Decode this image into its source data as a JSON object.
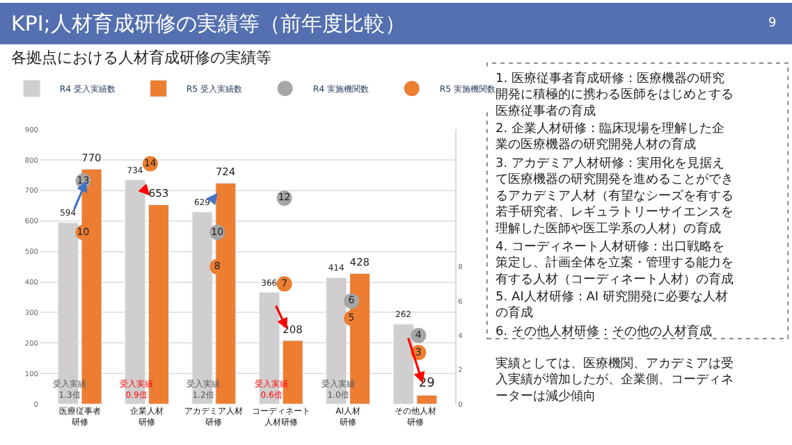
{
  "chart_data": {
    "type": "bar",
    "title": "KPI;人材育成研修の実績等（前年度比較）",
    "subtitle": "各拠点における人材育成研修の実績等",
    "categories": [
      "医療従事者研修",
      "企業人材研修",
      "アカデミア人材研修",
      "コーディネート人材研修",
      "AI人材研修",
      "その他人材研修"
    ],
    "series": [
      {
        "name": "R4 受入実績数",
        "color": "#d0cece",
        "values": [
          594,
          734,
          629,
          366,
          414,
          262
        ]
      },
      {
        "name": "R5 受入実績数",
        "color": "#ed7d31",
        "values": [
          770,
          653,
          724,
          208,
          428,
          29
        ]
      },
      {
        "name": "R4 実施機関数",
        "type": "scatter",
        "axis": "y2",
        "color": "#a6a6a6",
        "values": [
          13,
          null,
          10,
          12,
          6,
          4
        ]
      },
      {
        "name": "R5 実施機関数",
        "type": "scatter",
        "axis": "y2",
        "color": "#ed7d31",
        "values": [
          10,
          14,
          8,
          7,
          5,
          3
        ]
      }
    ],
    "ylim": [
      0,
      900
    ],
    "yticks": [
      0,
      100,
      200,
      300,
      400,
      500,
      600,
      700,
      800,
      900
    ],
    "y2lim": [
      0,
      16
    ],
    "y2ticks": [
      0,
      2,
      4,
      6,
      8
    ],
    "grid": "y",
    "legend": "top",
    "marker": "circle",
    "data_labels": true,
    "annotations": [
      {
        "text": "受入実績\n1.3倍",
        "x": "医療従事者研修"
      },
      {
        "text": "受入実績\n0.9倍",
        "x": "企業人材研修"
      },
      {
        "text": "受入実績\n1.2倍",
        "x": "アカデミア人材研修"
      },
      {
        "text": "受入実績\n0.6倍",
        "x": "コーディネート人材研修"
      },
      {
        "text": "受入実績\n1.0倍",
        "x": "AI人材研修"
      },
      "9",
      "1. 医療従事者育成研修：医療機器の研究開発に積極的に携わる医師をはじめとする医療従事者の育成",
      "2. 企業人材研修：臨床現場を理解した企業の医療機器の研究開発人材の育成",
      "3. アカデミア人材研修：実用化を見据えて医療機器の研究開発を進めることができるアカデミア人材（有望なシーズを有する若手研究者、レギュラトリーサイエンスを理解した医師や医工学系の人材）の育成",
      "4. コーディネート人材研修：出口戦略を策定し、計画全体を立案・管理する能力を有する人材（コーディネート人材）の育成",
      "5. AI人材研修：AI 研究開発に必要な人材の育成",
      "6. その他人材研修：その他の人材育成",
      "実績としては、医療機関、アカデミアは受入実績が増加したが、企業側、コーディネーターは減少傾向"
    ]
  }
}
